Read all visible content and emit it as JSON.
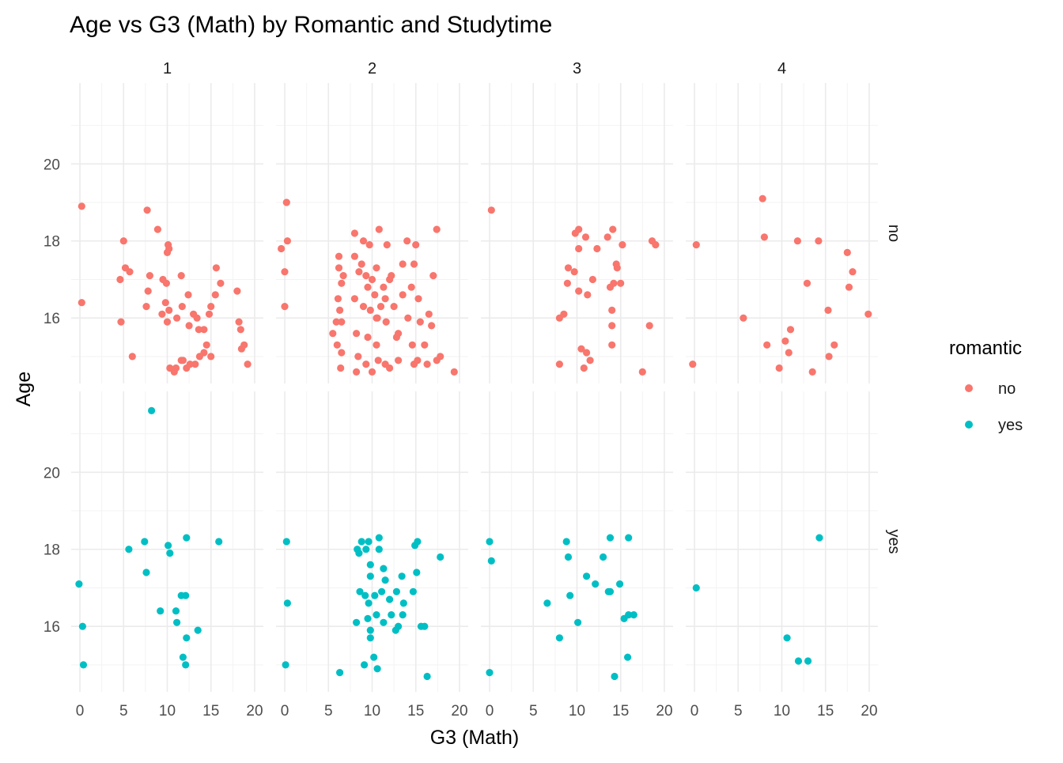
{
  "chart_data": {
    "type": "scatter",
    "title": "Age vs G3 (Math) by Romantic and Studytime",
    "xlabel": "G3 (Math)",
    "ylabel": "Age",
    "xlim": [
      0,
      20
    ],
    "ylim": [
      15,
      22
    ],
    "x_ticks": [
      0,
      5,
      10,
      15,
      20
    ],
    "y_ticks": [
      16,
      18,
      20
    ],
    "grid": true,
    "legend": {
      "title": "romantic",
      "position": "right",
      "entries": [
        {
          "label": "no",
          "color": "#F8766D"
        },
        {
          "label": "yes",
          "color": "#00BFC4"
        }
      ]
    },
    "facet_columns": {
      "variable": "studytime",
      "labels": [
        "1",
        "2",
        "3",
        "4"
      ]
    },
    "facet_rows": {
      "variable": "romantic",
      "labels": [
        "no",
        "yes"
      ]
    },
    "series": [
      {
        "name": "no",
        "color": "#F8766D"
      },
      {
        "name": "yes",
        "color": "#00BFC4"
      }
    ],
    "panels": [
      {
        "studytime": "1",
        "romantic": "no",
        "points": [
          [
            0.2,
            18.9
          ],
          [
            0.2,
            16.4
          ],
          [
            5,
            18.0
          ],
          [
            5.2,
            17.3
          ],
          [
            5.7,
            17.2
          ],
          [
            4.6,
            17.0
          ],
          [
            4.7,
            15.9
          ],
          [
            6,
            15.0
          ],
          [
            7.7,
            18.8
          ],
          [
            8.9,
            18.3
          ],
          [
            7.8,
            16.7
          ],
          [
            8,
            17.1
          ],
          [
            7.6,
            16.3
          ],
          [
            9.5,
            17.0
          ],
          [
            9.9,
            16.9
          ],
          [
            10.1,
            17.9
          ],
          [
            10,
            17.7
          ],
          [
            10.2,
            17.8
          ],
          [
            11.6,
            17.1
          ],
          [
            9.8,
            16.4
          ],
          [
            10.2,
            16.2
          ],
          [
            9.4,
            16.1
          ],
          [
            10,
            15.9
          ],
          [
            11.1,
            16.0
          ],
          [
            11.7,
            16.3
          ],
          [
            12.4,
            16.6
          ],
          [
            13,
            16.1
          ],
          [
            13.4,
            16.0
          ],
          [
            12.5,
            15.8
          ],
          [
            13.6,
            15.7
          ],
          [
            14.2,
            15.7
          ],
          [
            15,
            16.3
          ],
          [
            14.8,
            16.1
          ],
          [
            15.5,
            16.6
          ],
          [
            15.6,
            17.3
          ],
          [
            16.1,
            16.9
          ],
          [
            18,
            16.7
          ],
          [
            18.2,
            15.9
          ],
          [
            18.4,
            15.7
          ],
          [
            18.5,
            15.2
          ],
          [
            18.8,
            15.3
          ],
          [
            19.2,
            14.8
          ],
          [
            14.5,
            15.3
          ],
          [
            14.2,
            15.1
          ],
          [
            13.7,
            15.0
          ],
          [
            15,
            15.0
          ],
          [
            13.2,
            14.8
          ],
          [
            12.6,
            14.8
          ],
          [
            12.2,
            14.7
          ],
          [
            11.6,
            14.9
          ],
          [
            11,
            14.7
          ],
          [
            10.3,
            14.7
          ],
          [
            10.8,
            14.6
          ],
          [
            11.8,
            14.9
          ]
        ]
      },
      {
        "studytime": "2",
        "romantic": "no",
        "points": [
          [
            0.2,
            19.0
          ],
          [
            0.3,
            18.0
          ],
          [
            -0.4,
            17.8
          ],
          [
            0,
            17.2
          ],
          [
            0,
            16.3
          ],
          [
            6.2,
            17.6
          ],
          [
            6.2,
            17.3
          ],
          [
            6.7,
            17.1
          ],
          [
            6.5,
            16.9
          ],
          [
            6.1,
            16.5
          ],
          [
            6.3,
            16.2
          ],
          [
            6.5,
            15.9
          ],
          [
            5.9,
            15.9
          ],
          [
            5.5,
            15.6
          ],
          [
            6,
            15.3
          ],
          [
            6.5,
            15.1
          ],
          [
            6.4,
            14.7
          ],
          [
            8,
            18.2
          ],
          [
            9,
            18.0
          ],
          [
            9.7,
            17.9
          ],
          [
            10.8,
            18.3
          ],
          [
            11.7,
            17.9
          ],
          [
            14,
            18.0
          ],
          [
            15,
            17.9
          ],
          [
            17.4,
            18.3
          ],
          [
            8,
            17.6
          ],
          [
            8.8,
            17.4
          ],
          [
            9.3,
            17.1
          ],
          [
            10,
            17.0
          ],
          [
            11.3,
            16.8
          ],
          [
            12,
            17.0
          ],
          [
            13.5,
            17.4
          ],
          [
            14.8,
            17.4
          ],
          [
            17,
            17.1
          ],
          [
            8,
            16.5
          ],
          [
            9,
            16.3
          ],
          [
            9.8,
            16.2
          ],
          [
            10.6,
            16.0
          ],
          [
            11.6,
            15.9
          ],
          [
            13,
            15.6
          ],
          [
            14.1,
            16.0
          ],
          [
            15.5,
            15.9
          ],
          [
            16.8,
            15.8
          ],
          [
            8.2,
            15.6
          ],
          [
            9.5,
            15.5
          ],
          [
            10.5,
            15.3
          ],
          [
            12.8,
            15.5
          ],
          [
            14.6,
            15.3
          ],
          [
            16,
            15.3
          ],
          [
            17.8,
            15.0
          ],
          [
            8.4,
            15.0
          ],
          [
            9.3,
            14.8
          ],
          [
            10.7,
            14.9
          ],
          [
            11.5,
            14.8
          ],
          [
            12,
            14.7
          ],
          [
            13,
            14.9
          ],
          [
            14.8,
            14.8
          ],
          [
            15.2,
            14.9
          ],
          [
            16.3,
            14.8
          ],
          [
            17.4,
            14.9
          ],
          [
            19.4,
            14.6
          ],
          [
            8.2,
            14.6
          ],
          [
            10,
            14.6
          ],
          [
            10.5,
            16.0
          ],
          [
            11,
            16.3
          ],
          [
            12.5,
            16.3
          ],
          [
            13.5,
            16.6
          ],
          [
            14.5,
            16.8
          ],
          [
            15.3,
            16.5
          ],
          [
            16.5,
            16.1
          ],
          [
            9.5,
            16.8
          ],
          [
            10.3,
            16.6
          ],
          [
            11.5,
            16.5
          ],
          [
            8.5,
            17.2
          ],
          [
            10.5,
            17.3
          ],
          [
            12.2,
            17.1
          ]
        ]
      },
      {
        "studytime": "3",
        "romantic": "no",
        "points": [
          [
            0.2,
            18.8
          ],
          [
            9.8,
            18.2
          ],
          [
            10.2,
            18.3
          ],
          [
            11,
            18.1
          ],
          [
            12.3,
            17.8
          ],
          [
            13.5,
            18.1
          ],
          [
            14.1,
            18.3
          ],
          [
            15.2,
            17.9
          ],
          [
            18.6,
            18.0
          ],
          [
            19,
            17.9
          ],
          [
            9,
            17.3
          ],
          [
            9.7,
            17.2
          ],
          [
            10.2,
            17.8
          ],
          [
            11.8,
            17.0
          ],
          [
            14.5,
            17.4
          ],
          [
            14.6,
            17.3
          ],
          [
            13.8,
            16.8
          ],
          [
            14.2,
            16.9
          ],
          [
            15.0,
            16.9
          ],
          [
            8.9,
            16.9
          ],
          [
            10.2,
            16.7
          ],
          [
            11.2,
            16.6
          ],
          [
            8.5,
            16.1
          ],
          [
            8,
            16.0
          ],
          [
            14,
            16.2
          ],
          [
            14,
            15.8
          ],
          [
            18.3,
            15.8
          ],
          [
            10.5,
            15.2
          ],
          [
            11.1,
            15.1
          ],
          [
            11.5,
            14.9
          ],
          [
            14,
            15.3
          ],
          [
            8,
            14.8
          ],
          [
            10.8,
            14.7
          ],
          [
            17.5,
            14.6
          ]
        ]
      },
      {
        "studytime": "4",
        "romantic": "no",
        "points": [
          [
            0.2,
            17.9
          ],
          [
            -0.2,
            14.8
          ],
          [
            7.8,
            19.1
          ],
          [
            8,
            18.1
          ],
          [
            11.8,
            18.0
          ],
          [
            14.2,
            18.0
          ],
          [
            17.5,
            17.7
          ],
          [
            18.1,
            17.2
          ],
          [
            12.9,
            16.9
          ],
          [
            17.7,
            16.8
          ],
          [
            5.6,
            16.0
          ],
          [
            15.3,
            16.2
          ],
          [
            19.9,
            16.1
          ],
          [
            11,
            15.7
          ],
          [
            8.3,
            15.3
          ],
          [
            10.4,
            15.4
          ],
          [
            10.8,
            15.1
          ],
          [
            16,
            15.3
          ],
          [
            15.4,
            15.0
          ],
          [
            9.7,
            14.7
          ],
          [
            13.5,
            14.6
          ]
        ]
      },
      {
        "studytime": "1",
        "romantic": "yes",
        "points": [
          [
            8.2,
            21.6
          ],
          [
            -0.1,
            17.1
          ],
          [
            0.3,
            16.0
          ],
          [
            0.4,
            15.0
          ],
          [
            5.6,
            18.0
          ],
          [
            7.4,
            18.2
          ],
          [
            10.1,
            18.1
          ],
          [
            10.3,
            17.9
          ],
          [
            12.2,
            18.3
          ],
          [
            15.9,
            18.2
          ],
          [
            7.6,
            17.4
          ],
          [
            11.6,
            16.8
          ],
          [
            12.1,
            16.8
          ],
          [
            9.2,
            16.4
          ],
          [
            11,
            16.4
          ],
          [
            11.1,
            16.1
          ],
          [
            12.2,
            15.7
          ],
          [
            13.5,
            15.9
          ],
          [
            11.8,
            15.2
          ],
          [
            12.1,
            15.0
          ]
        ]
      },
      {
        "studytime": "2",
        "romantic": "yes",
        "points": [
          [
            0.2,
            18.2
          ],
          [
            0.3,
            16.6
          ],
          [
            0.1,
            15.0
          ],
          [
            6.3,
            14.8
          ],
          [
            8.3,
            18.0
          ],
          [
            8.8,
            18.2
          ],
          [
            9.6,
            18.2
          ],
          [
            10.8,
            18.3
          ],
          [
            14.9,
            18.1
          ],
          [
            15.2,
            18.2
          ],
          [
            17.8,
            17.8
          ],
          [
            8.5,
            17.9
          ],
          [
            9.3,
            18.0
          ],
          [
            9.8,
            17.6
          ],
          [
            10.8,
            18.0
          ],
          [
            11.3,
            17.5
          ],
          [
            9.8,
            17.3
          ],
          [
            11.5,
            17.2
          ],
          [
            13.4,
            17.3
          ],
          [
            15.1,
            17.4
          ],
          [
            8.6,
            16.9
          ],
          [
            9.2,
            16.8
          ],
          [
            9.6,
            16.6
          ],
          [
            10.3,
            16.8
          ],
          [
            11.1,
            16.9
          ],
          [
            12,
            16.7
          ],
          [
            12.8,
            16.9
          ],
          [
            13.6,
            16.6
          ],
          [
            14.7,
            16.9
          ],
          [
            9.5,
            16.2
          ],
          [
            10.5,
            16.3
          ],
          [
            11.3,
            16.1
          ],
          [
            12.2,
            16.3
          ],
          [
            13.5,
            16.3
          ],
          [
            8.2,
            16.1
          ],
          [
            9.8,
            15.9
          ],
          [
            12.7,
            15.9
          ],
          [
            13,
            16.0
          ],
          [
            15.6,
            16.0
          ],
          [
            16,
            16.0
          ],
          [
            9.1,
            15.0
          ],
          [
            10.2,
            15.2
          ],
          [
            10.6,
            14.9
          ],
          [
            16.3,
            14.7
          ],
          [
            9.8,
            15.7
          ]
        ]
      },
      {
        "studytime": "3",
        "romantic": "yes",
        "points": [
          [
            0,
            18.2
          ],
          [
            0.2,
            17.7
          ],
          [
            0,
            14.8
          ],
          [
            8.8,
            18.2
          ],
          [
            9,
            17.8
          ],
          [
            13.8,
            18.3
          ],
          [
            15.9,
            18.3
          ],
          [
            13.0,
            17.8
          ],
          [
            11.1,
            17.3
          ],
          [
            12.1,
            17.1
          ],
          [
            14.9,
            17.1
          ],
          [
            13.6,
            16.9
          ],
          [
            13.8,
            16.9
          ],
          [
            9.2,
            16.8
          ],
          [
            6.6,
            16.6
          ],
          [
            15.9,
            16.3
          ],
          [
            15.4,
            16.2
          ],
          [
            16.5,
            16.3
          ],
          [
            10.1,
            16.1
          ],
          [
            8,
            15.7
          ],
          [
            15.8,
            15.2
          ],
          [
            14.3,
            14.7
          ]
        ]
      },
      {
        "studytime": "4",
        "romantic": "yes",
        "points": [
          [
            0.2,
            17.0
          ],
          [
            14.3,
            18.3
          ],
          [
            10.6,
            15.7
          ],
          [
            11.9,
            15.1
          ],
          [
            13,
            15.1
          ]
        ]
      }
    ]
  }
}
